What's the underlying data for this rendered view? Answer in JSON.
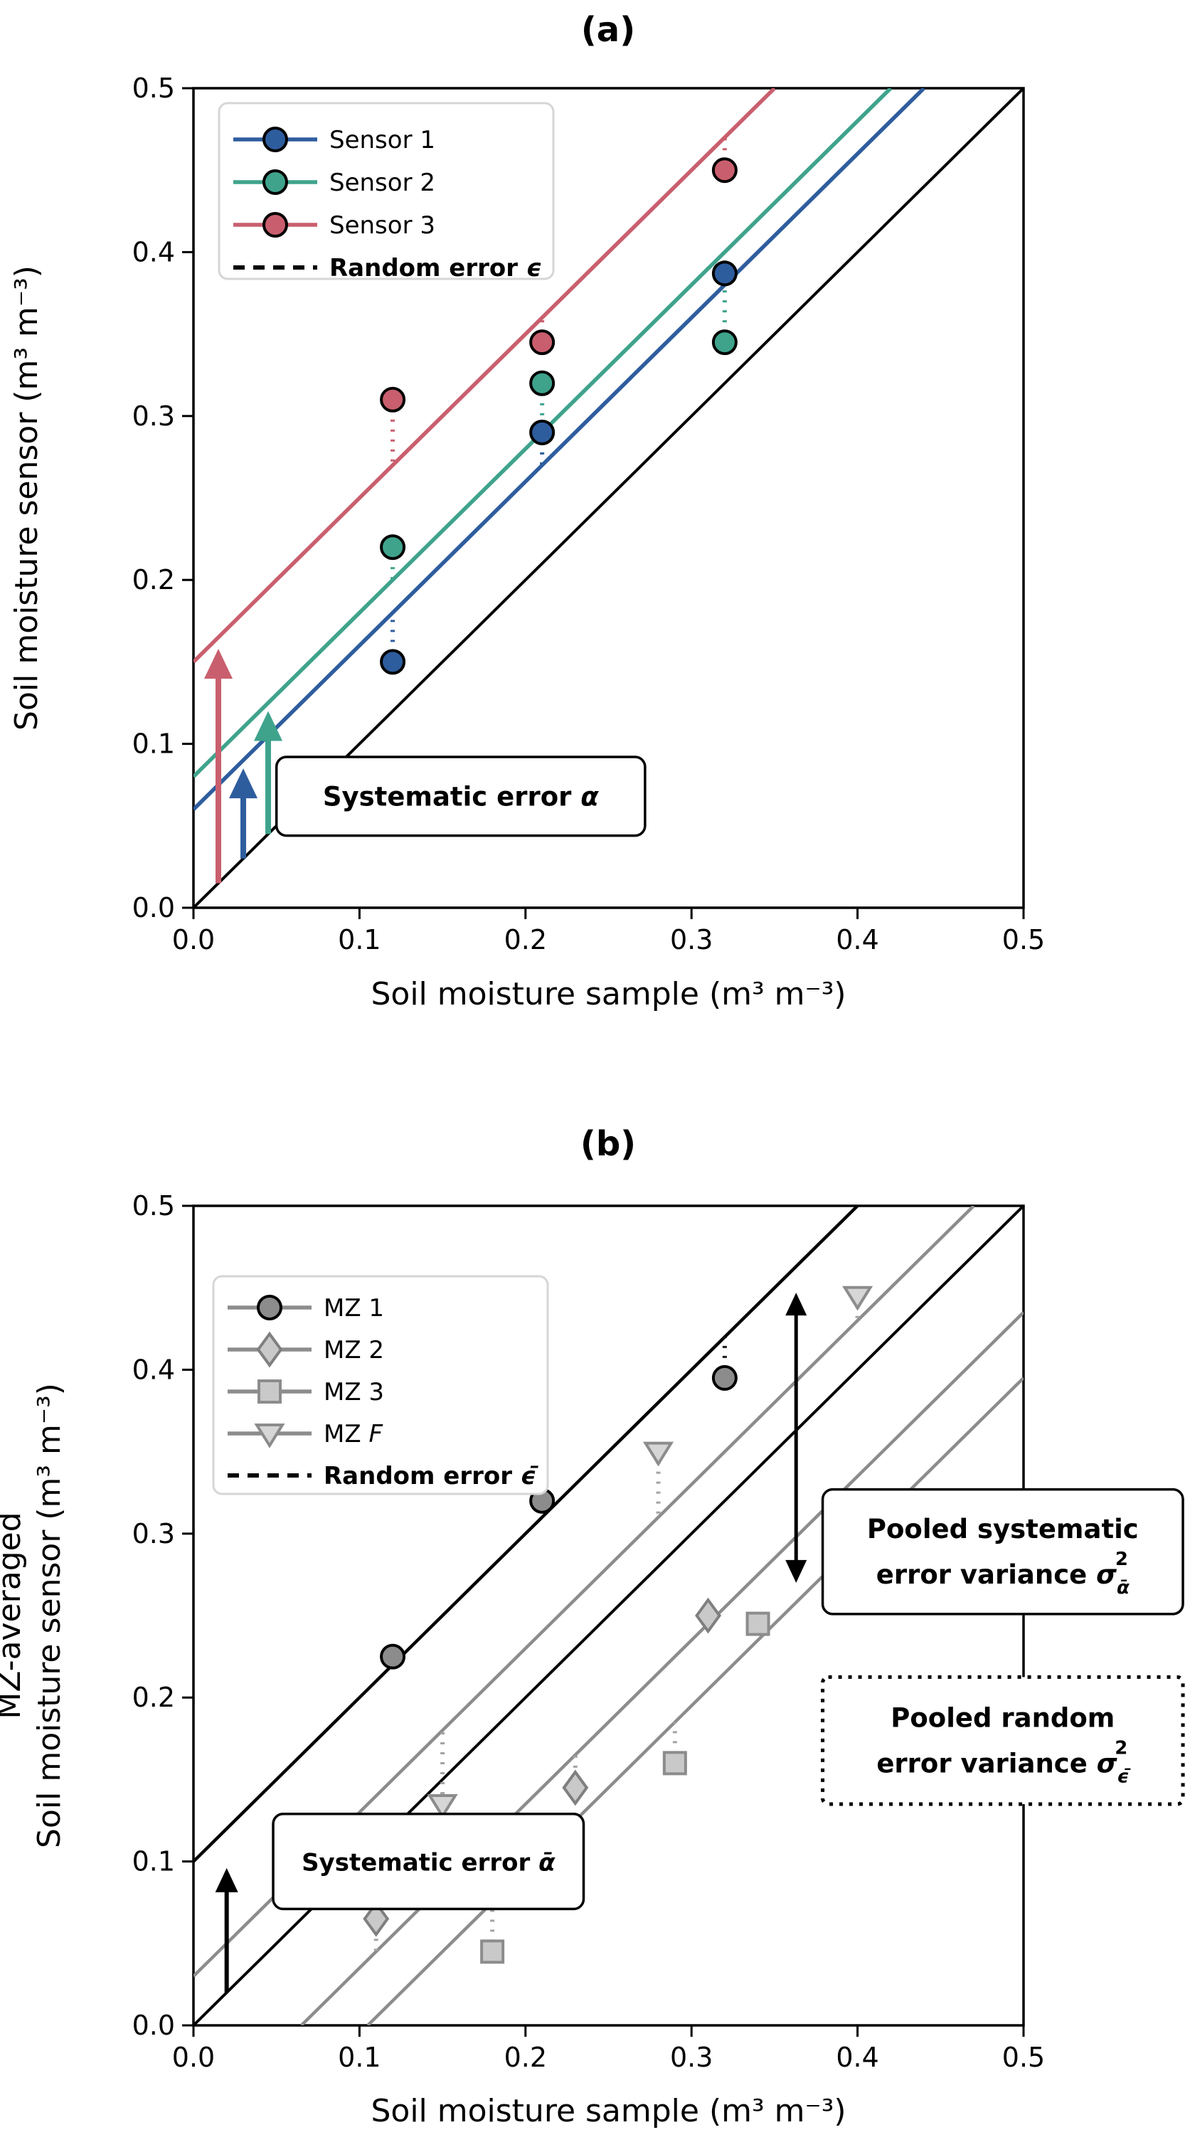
{
  "figure": {
    "background": "#ffffff",
    "panel_count": 2
  },
  "chart_data": [
    {
      "type": "scatter",
      "panel": "a",
      "title": "(a)",
      "xlabel": "Soil moisture sample (m³ m⁻³)",
      "ylabel_lines": [
        "Soil moisture sensor (m³ m⁻³)"
      ],
      "xlim": [
        0.0,
        0.5
      ],
      "ylim": [
        0.0,
        0.5
      ],
      "xtick_labels": [
        "0.0",
        "0.1",
        "0.2",
        "0.3",
        "0.4",
        "0.5"
      ],
      "ytick_labels": [
        "0.0",
        "0.1",
        "0.2",
        "0.3",
        "0.4",
        "0.5"
      ],
      "grid": false,
      "legend_position": "upper-left",
      "identity_line": {
        "slope": 1,
        "intercept": 0.0,
        "color": "#000000"
      },
      "series": [
        {
          "name": "Sensor 1",
          "marker": "circle",
          "line_color": "#2e5d9e",
          "legend_line_color": "#2e5d9e",
          "marker_fill": "#2e5d9e",
          "marker_edge": "#000000",
          "residual_color": "#2e5d9e",
          "fit_slope": 1,
          "fit_intercept": 0.06,
          "points": [
            [
              0.12,
              0.15
            ],
            [
              0.21,
              0.29
            ],
            [
              0.32,
              0.387
            ]
          ]
        },
        {
          "name": "Sensor 2",
          "marker": "circle",
          "line_color": "#3fa38c",
          "legend_line_color": "#3fa38c",
          "marker_fill": "#3fa38c",
          "marker_edge": "#000000",
          "residual_color": "#3fa38c",
          "fit_slope": 1,
          "fit_intercept": 0.08,
          "points": [
            [
              0.12,
              0.22
            ],
            [
              0.21,
              0.32
            ],
            [
              0.32,
              0.345
            ]
          ]
        },
        {
          "name": "Sensor 3",
          "marker": "circle",
          "line_color": "#c95f6e",
          "legend_line_color": "#c95f6e",
          "marker_fill": "#c95f6e",
          "marker_edge": "#000000",
          "residual_color": "#c95f6e",
          "fit_slope": 1,
          "fit_intercept": 0.15,
          "points": [
            [
              0.12,
              0.31
            ],
            [
              0.21,
              0.345
            ],
            [
              0.32,
              0.45
            ]
          ]
        }
      ],
      "legend_entries": [
        {
          "series": 0,
          "label": [
            {
              "t": "Sensor 1"
            }
          ]
        },
        {
          "series": 1,
          "label": [
            {
              "t": "Sensor 2"
            }
          ]
        },
        {
          "series": 2,
          "label": [
            {
              "t": "Sensor 3"
            }
          ]
        },
        {
          "sample": "dotted",
          "color": "#000000",
          "label": [
            {
              "t": "Random error ",
              "b": 1
            },
            {
              "t": "ϵ",
              "b": 1,
              "i": 1
            }
          ]
        }
      ],
      "arrows": [
        {
          "x": 0.015,
          "y0": 0.015,
          "y1": 0.158,
          "color": "#c95f6e"
        },
        {
          "x": 0.03,
          "y0": 0.03,
          "y1": 0.085,
          "color": "#2e5d9e"
        },
        {
          "x": 0.045,
          "y0": 0.045,
          "y1": 0.12,
          "color": "#3fa38c"
        }
      ],
      "double_arrows": [],
      "annotation_boxes": [
        {
          "x0": 0.05,
          "y0": 0.044,
          "x1": 0.272,
          "y1": 0.092,
          "border": "solid",
          "lines": [
            [
              {
                "t": "Systematic error ",
                "b": 1
              },
              {
                "t": "α",
                "b": 1,
                "i": 1
              }
            ]
          ]
        }
      ]
    },
    {
      "type": "scatter",
      "panel": "b",
      "title": "(b)",
      "xlabel": "Soil moisture sample (m³ m⁻³)",
      "ylabel_lines": [
        "MZ-averaged",
        "Soil moisture sensor (m³ m⁻³)"
      ],
      "xlim": [
        0.0,
        0.5
      ],
      "ylim": [
        0.0,
        0.5
      ],
      "xtick_labels": [
        "0.0",
        "0.1",
        "0.2",
        "0.3",
        "0.4",
        "0.5"
      ],
      "ytick_labels": [
        "0.0",
        "0.1",
        "0.2",
        "0.3",
        "0.4",
        "0.5"
      ],
      "grid": false,
      "legend_position": "upper-left",
      "identity_line": {
        "slope": 1,
        "intercept": 0.0,
        "color": "#000000"
      },
      "series": [
        {
          "name": "MZ 1",
          "marker": "circle",
          "line_color": "#000000",
          "legend_line_color": "#8c8c8c",
          "marker_fill": "#8c8c8c",
          "marker_edge": "#000000",
          "residual_color": "#1a1a1a",
          "fit_slope": 1,
          "fit_intercept": 0.1,
          "points": [
            [
              0.12,
              0.225
            ],
            [
              0.21,
              0.32
            ],
            [
              0.32,
              0.395
            ]
          ]
        },
        {
          "name": "MZ 2",
          "marker": "diamond",
          "line_color": "#8c8c8c",
          "legend_line_color": "#8c8c8c",
          "marker_fill": "#c9c9c9",
          "marker_edge": "#7f7f7f",
          "residual_color": "#a3a3a3",
          "fit_slope": 1,
          "fit_intercept": -0.065,
          "points": [
            [
              0.11,
              0.065
            ],
            [
              0.23,
              0.145
            ],
            [
              0.31,
              0.25
            ]
          ]
        },
        {
          "name": "MZ 3",
          "marker": "square",
          "line_color": "#8c8c8c",
          "legend_line_color": "#8c8c8c",
          "marker_fill": "#c9c9c9",
          "marker_edge": "#8c8c8c",
          "residual_color": "#a3a3a3",
          "fit_slope": 1,
          "fit_intercept": -0.105,
          "points": [
            [
              0.18,
              0.045
            ],
            [
              0.29,
              0.16
            ],
            [
              0.34,
              0.245
            ]
          ]
        },
        {
          "name": "MZ F",
          "marker": "triangle-down",
          "line_color": "#8c8c8c",
          "legend_line_color": "#8c8c8c",
          "marker_fill": "#d6d6d6",
          "marker_edge": "#8c8c8c",
          "residual_color": "#a3a3a3",
          "fit_slope": 1,
          "fit_intercept": 0.03,
          "points": [
            [
              0.15,
              0.135
            ],
            [
              0.28,
              0.35
            ],
            [
              0.4,
              0.445
            ]
          ]
        }
      ],
      "legend_entries": [
        {
          "series": 0,
          "label": [
            {
              "t": "MZ 1"
            }
          ]
        },
        {
          "series": 1,
          "label": [
            {
              "t": "MZ 2"
            }
          ]
        },
        {
          "series": 2,
          "label": [
            {
              "t": "MZ 3"
            }
          ]
        },
        {
          "series": 3,
          "label": [
            {
              "t": "MZ "
            },
            {
              "t": "F",
              "i": 1
            }
          ]
        },
        {
          "sample": "dotted",
          "color": "#000000",
          "label": [
            {
              "t": "Random error ",
              "b": 1
            },
            {
              "t": "ϵ̄",
              "b": 1,
              "i": 1
            }
          ]
        }
      ],
      "arrows": [
        {
          "x": 0.02,
          "y0": 0.02,
          "y1": 0.096,
          "color": "#000000"
        }
      ],
      "double_arrows": [
        {
          "x": 0.363,
          "y0": 0.27,
          "y1": 0.447,
          "color": "#000000"
        }
      ],
      "annotation_boxes": [
        {
          "x0": 0.048,
          "y0": 0.071,
          "x1": 0.235,
          "y1": 0.129,
          "border": "solid",
          "font": 34,
          "lines": [
            [
              {
                "t": "Systematic error ",
                "b": 1
              },
              {
                "t": "ᾱ",
                "b": 1,
                "i": 1
              }
            ]
          ]
        },
        {
          "x0": 0.379,
          "y0": 0.251,
          "x1": 0.596,
          "y1": 0.327,
          "border": "solid",
          "lines": [
            [
              {
                "t": "Pooled systematic",
                "b": 1
              }
            ],
            [
              {
                "t": "error variance ",
                "b": 1
              },
              {
                "t": "σ",
                "b": 1,
                "i": 1
              },
              {
                "t": "ᾱ",
                "b": 1,
                "i": 1,
                "sub": 1
              },
              {
                "t": "2",
                "b": 1,
                "sup": 1,
                "dx": -20
              }
            ]
          ]
        },
        {
          "x0": 0.379,
          "y0": 0.135,
          "x1": 0.596,
          "y1": 0.2125,
          "border": "dotted",
          "lines": [
            [
              {
                "t": "Pooled random",
                "b": 1
              }
            ],
            [
              {
                "t": "error variance ",
                "b": 1
              },
              {
                "t": "σ",
                "b": 1,
                "i": 1
              },
              {
                "t": "ϵ̄",
                "b": 1,
                "i": 1,
                "sub": 1
              },
              {
                "t": "2",
                "b": 1,
                "sup": 1,
                "dx": -20
              }
            ]
          ]
        }
      ]
    }
  ]
}
